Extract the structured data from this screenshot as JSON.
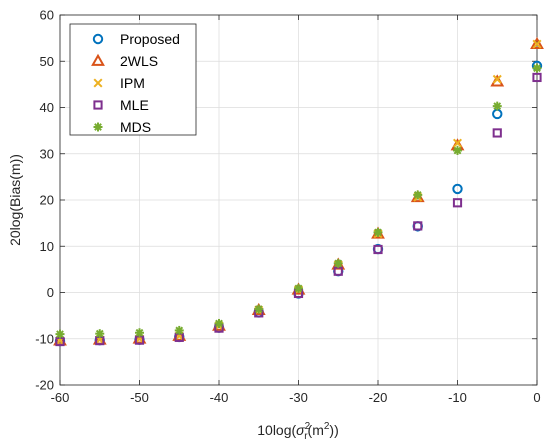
{
  "chart_data": {
    "type": "scatter",
    "xlabel": "10log(σ_r^2(m^2))",
    "xlabel_parts": {
      "pre": "10log(",
      "sym": "σ",
      "sup1": "2",
      "sub1": "r",
      "mid": "(m",
      "sup2": "2",
      "post": "))"
    },
    "ylabel": "20log(Bias(m))",
    "xlim": [
      -60,
      0
    ],
    "ylim": [
      -20,
      60
    ],
    "xticks": [
      -60,
      -50,
      -40,
      -30,
      -20,
      -10,
      0
    ],
    "yticks": [
      -20,
      -10,
      0,
      10,
      20,
      30,
      40,
      50,
      60
    ],
    "grid": true,
    "legend_position": "top-left",
    "x": [
      -60,
      -55,
      -50,
      -45,
      -40,
      -35,
      -30,
      -25,
      -20,
      -15,
      -10,
      -5,
      0
    ],
    "series": [
      {
        "name": "Proposed",
        "marker": "circle",
        "color": "#0072BD",
        "values": [
          -10.5,
          -10.3,
          -10.2,
          -9.6,
          -7.6,
          -4.3,
          -0.2,
          4.6,
          9.4,
          14.3,
          22.4,
          38.6,
          49.0
        ]
      },
      {
        "name": "2WLS",
        "marker": "triangle",
        "color": "#D95319",
        "values": [
          -10.4,
          -10.2,
          -10.0,
          -9.4,
          -7.2,
          -3.8,
          0.6,
          6.0,
          12.7,
          20.6,
          31.8,
          45.6,
          53.7
        ]
      },
      {
        "name": "IPM",
        "marker": "x",
        "color": "#EDB120",
        "values": [
          -10.4,
          -10.2,
          -10.0,
          -9.4,
          -7.2,
          -3.8,
          0.6,
          6.0,
          12.7,
          20.6,
          32.3,
          46.1,
          53.7
        ]
      },
      {
        "name": "MLE",
        "marker": "square",
        "color": "#7E2F8E",
        "values": [
          -10.6,
          -10.4,
          -10.3,
          -9.7,
          -7.7,
          -4.4,
          -0.2,
          4.6,
          9.3,
          14.4,
          19.4,
          34.5,
          46.5
        ]
      },
      {
        "name": "MDS",
        "marker": "asterisk",
        "color": "#77AC30",
        "values": [
          -9.0,
          -8.9,
          -8.7,
          -8.2,
          -6.7,
          -3.6,
          0.9,
          6.3,
          13.0,
          21.1,
          30.7,
          40.3,
          48.5
        ]
      }
    ]
  }
}
